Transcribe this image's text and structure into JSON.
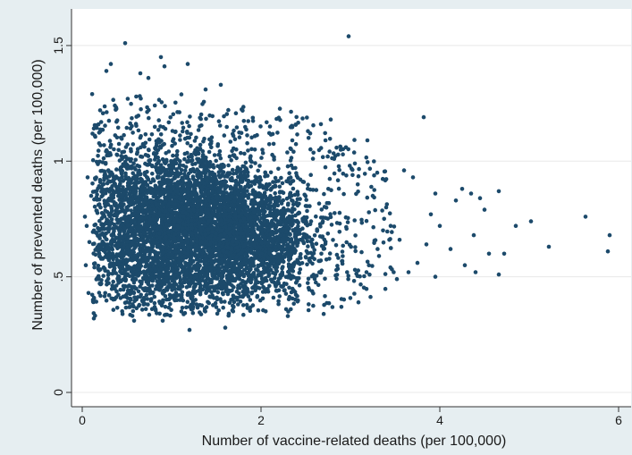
{
  "chart_data": {
    "type": "scatter",
    "title": "",
    "xlabel": "Number of vaccine-related deaths (per 100,000)",
    "ylabel": "Number of prevented deaths (per 100,000)",
    "xlim": [
      0,
      6
    ],
    "ylim": [
      0,
      1.55
    ],
    "x_ticks": [
      {
        "value": 0,
        "label": "0"
      },
      {
        "value": 2,
        "label": "2"
      },
      {
        "value": 4,
        "label": "4"
      },
      {
        "value": 6,
        "label": "6"
      }
    ],
    "y_ticks": [
      {
        "value": 0,
        "label": "0"
      },
      {
        "value": 0.5,
        "label": ".5"
      },
      {
        "value": 1,
        "label": "1"
      },
      {
        "value": 1.5,
        "label": "1.5"
      }
    ],
    "grid": true,
    "marker_color": "#1c4a6b",
    "background_color": "#e6eef1",
    "plot_background_color": "#ffffff",
    "series": [
      {
        "points": [
          [
            2.98,
            1.54
          ],
          [
            0.48,
            1.51
          ],
          [
            0.32,
            1.42
          ],
          [
            0.27,
            1.39
          ],
          [
            0.88,
            1.45
          ],
          [
            0.92,
            1.41
          ],
          [
            1.18,
            1.42
          ],
          [
            0.65,
            1.38
          ],
          [
            1.55,
            1.33
          ],
          [
            0.74,
            1.36
          ],
          [
            1.38,
            1.31
          ],
          [
            0.2,
            1.22
          ],
          [
            0.14,
            1.11
          ],
          [
            3.82,
            1.19
          ],
          [
            3.19,
            1.09
          ],
          [
            2.78,
            1.18
          ],
          [
            2.67,
            1.16
          ],
          [
            2.55,
            1.12
          ],
          [
            2.95,
            1.06
          ],
          [
            2.35,
            1.09
          ],
          [
            2.1,
            1.15
          ],
          [
            3.05,
            0.99
          ],
          [
            3.3,
            0.95
          ],
          [
            3.6,
            0.96
          ],
          [
            3.7,
            0.93
          ],
          [
            3.95,
            0.86
          ],
          [
            4.18,
            0.83
          ],
          [
            4.25,
            0.88
          ],
          [
            4.35,
            0.86
          ],
          [
            4.45,
            0.84
          ],
          [
            4.66,
            0.87
          ],
          [
            4.5,
            0.79
          ],
          [
            4.85,
            0.72
          ],
          [
            5.02,
            0.74
          ],
          [
            4.38,
            0.68
          ],
          [
            4.12,
            0.62
          ],
          [
            4.55,
            0.6
          ],
          [
            4.28,
            0.55
          ],
          [
            4.4,
            0.52
          ],
          [
            4.66,
            0.51
          ],
          [
            4.72,
            0.6
          ],
          [
            5.22,
            0.63
          ],
          [
            5.63,
            0.76
          ],
          [
            5.9,
            0.68
          ],
          [
            5.88,
            0.61
          ],
          [
            3.85,
            0.64
          ],
          [
            3.75,
            0.56
          ],
          [
            3.95,
            0.5
          ],
          [
            3.65,
            0.52
          ],
          [
            3.52,
            0.49
          ],
          [
            3.9,
            0.77
          ],
          [
            4.0,
            0.72
          ],
          [
            3.4,
            0.8
          ],
          [
            3.25,
            0.85
          ],
          [
            3.45,
            0.72
          ],
          [
            3.55,
            0.66
          ],
          [
            3.32,
            0.59
          ],
          [
            3.18,
            0.52
          ],
          [
            2.3,
            0.33
          ],
          [
            1.6,
            0.28
          ],
          [
            1.2,
            0.27
          ],
          [
            0.58,
            0.31
          ],
          [
            0.9,
            0.31
          ],
          [
            0.13,
            0.32
          ],
          [
            0.12,
            0.4
          ],
          [
            0.07,
            0.43
          ],
          [
            0.05,
            0.72
          ],
          [
            0.03,
            0.76
          ],
          [
            0.06,
            0.93
          ],
          [
            0.1,
            0.85
          ],
          [
            0.08,
            0.65
          ],
          [
            0.04,
            0.55
          ]
        ]
      }
    ],
    "dense_cloud": {
      "note_type": "approximate distribution of the main point cloud",
      "x_range": [
        0.1,
        3.2
      ],
      "y_range": [
        0.33,
        1.28
      ],
      "center": [
        0.85,
        0.7
      ]
    }
  }
}
